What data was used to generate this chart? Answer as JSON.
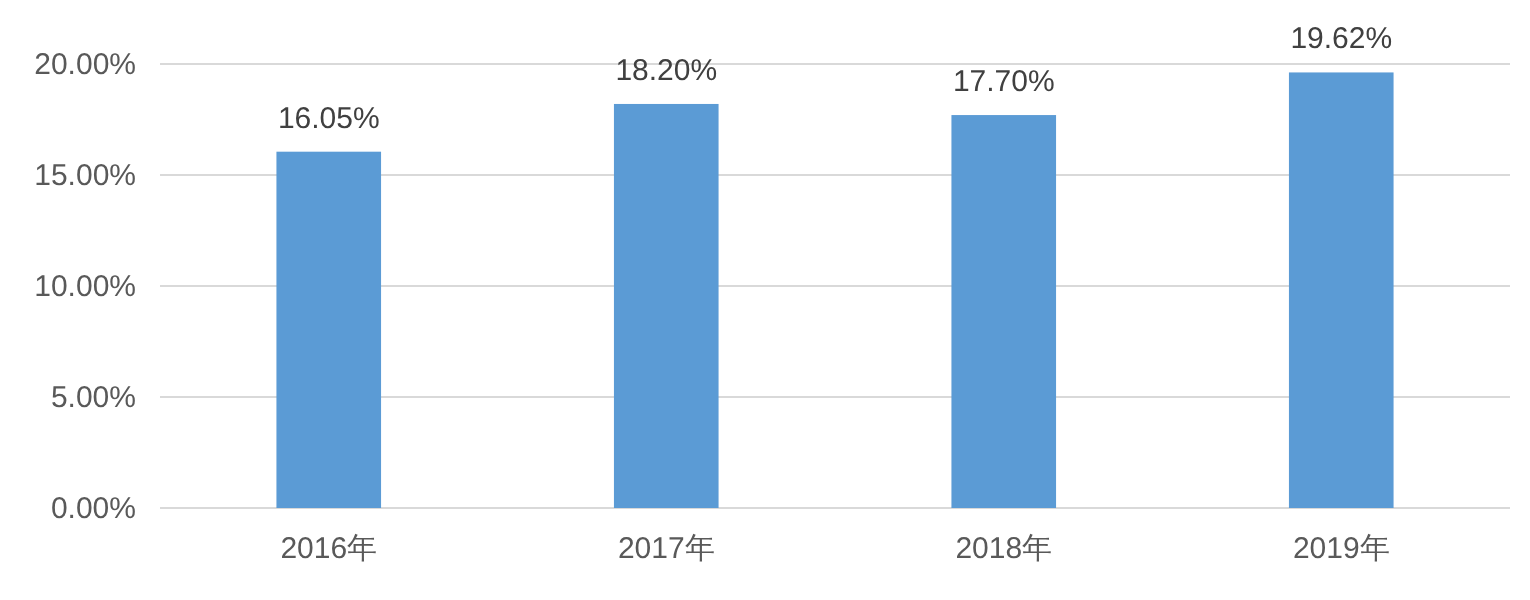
{
  "chart_data": {
    "type": "bar",
    "categories": [
      "2016年",
      "2017年",
      "2018年",
      "2019年"
    ],
    "values": [
      16.05,
      18.2,
      17.7,
      19.62
    ],
    "value_labels": [
      "16.05%",
      "18.20%",
      "17.70%",
      "19.62%"
    ],
    "color": "#5b9bd5",
    "ylim": [
      0,
      20
    ],
    "yticks": [
      {
        "value": 0,
        "label": "0.00%"
      },
      {
        "value": 5,
        "label": "5.00%"
      },
      {
        "value": 10,
        "label": "10.00%"
      },
      {
        "value": 15,
        "label": "15.00%"
      },
      {
        "value": 20,
        "label": "20.00%"
      }
    ],
    "grid": "y"
  }
}
